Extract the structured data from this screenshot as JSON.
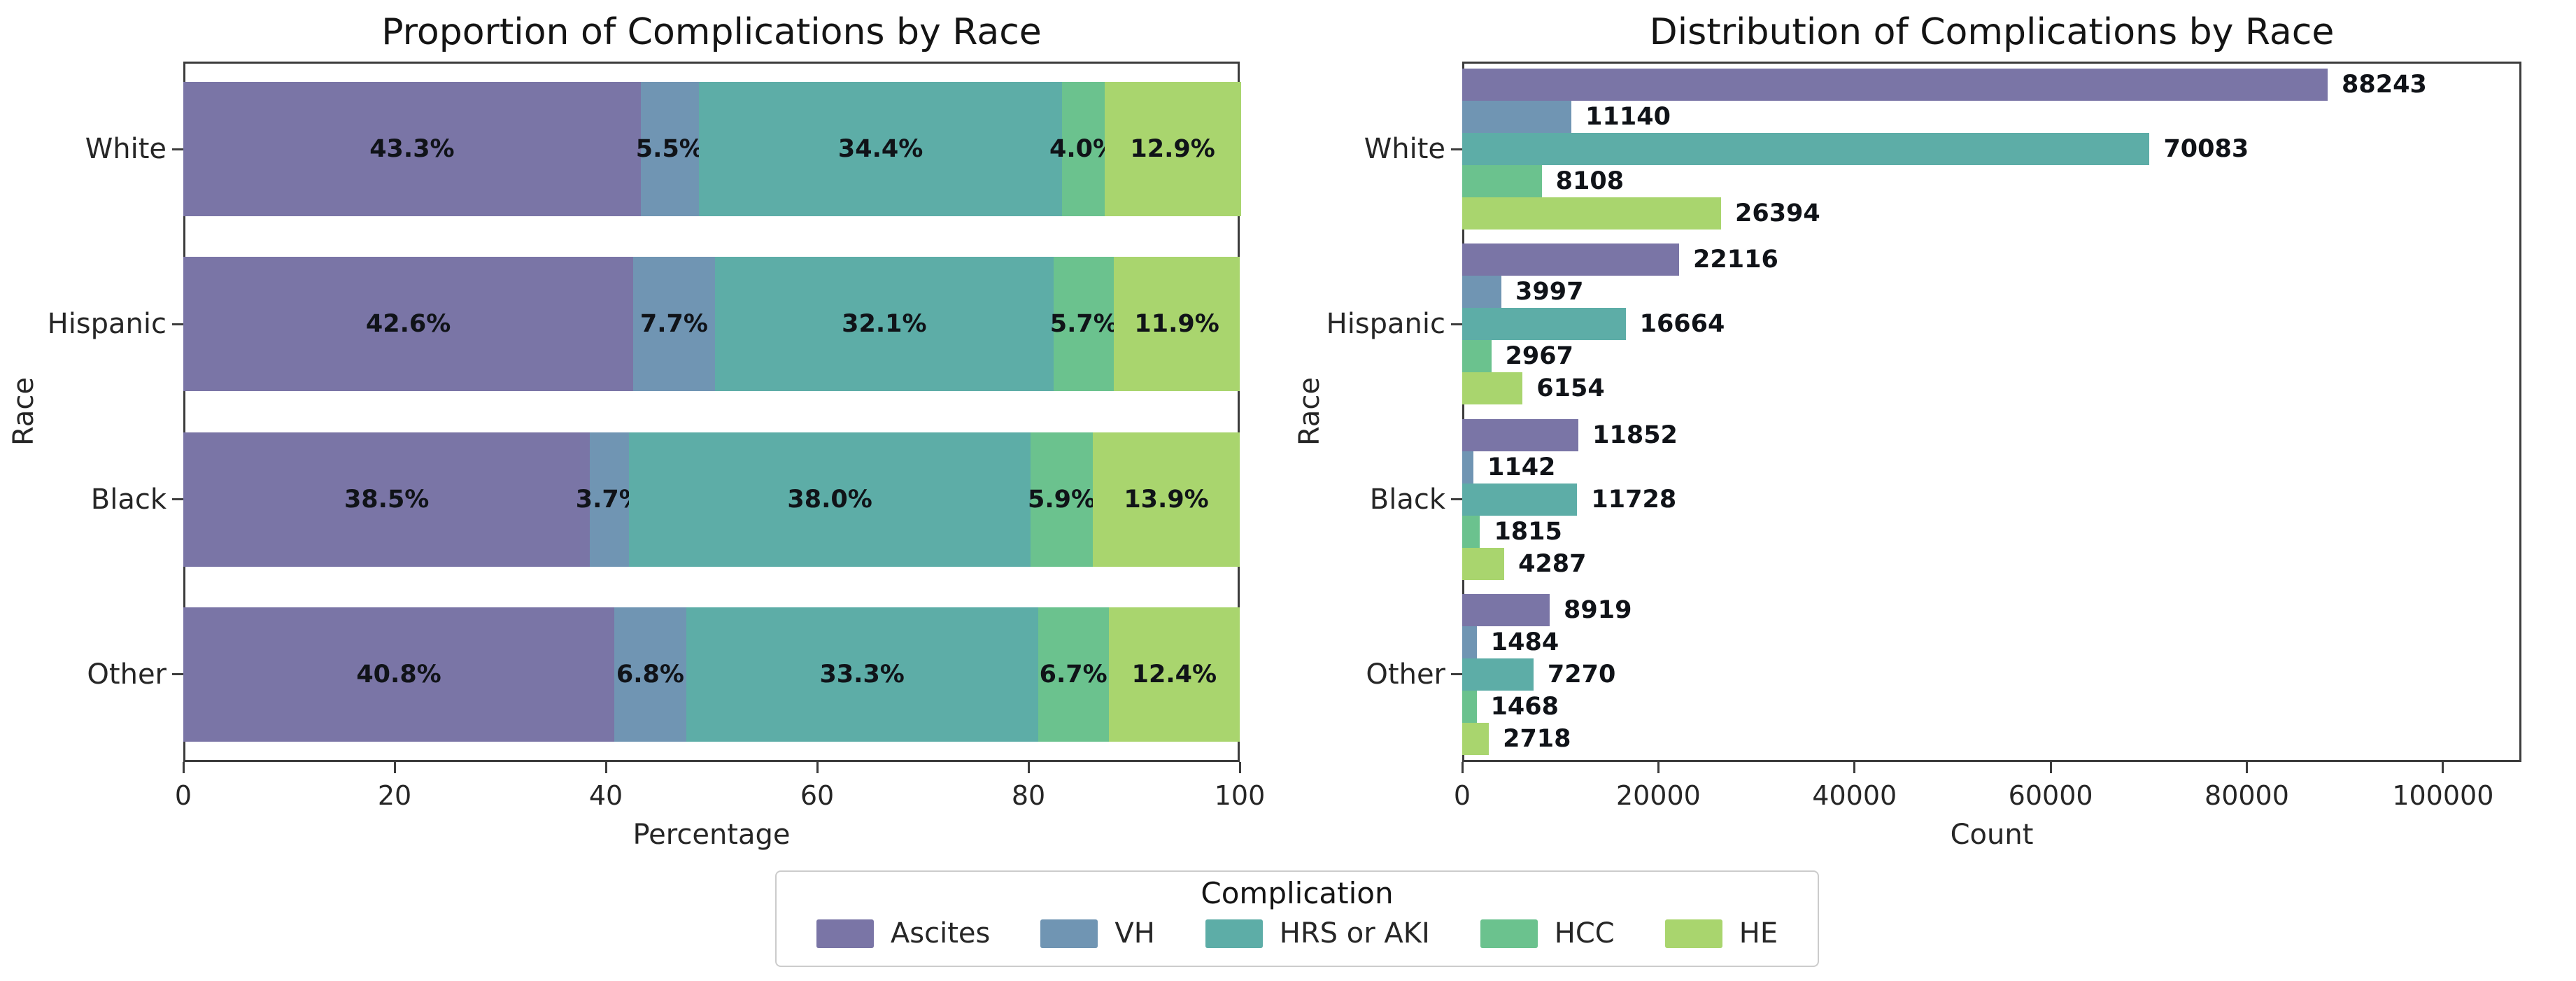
{
  "figure": {
    "background": "#ffffff",
    "text_color": "#262626",
    "spine_color": "#3c3c3c"
  },
  "legend": {
    "title": "Complication",
    "entries": [
      "Ascites",
      "VH",
      "HRS or AKI",
      "HCC",
      "HE"
    ]
  },
  "chart_data": [
    {
      "type": "bar",
      "orientation": "horizontal",
      "stacked": true,
      "title": "Proportion of Complications by Race",
      "xlabel": "Percentage",
      "ylabel": "Race",
      "categories": [
        "White",
        "Hispanic",
        "Black",
        "Other"
      ],
      "xlim": [
        0,
        100
      ],
      "xticks": [
        0,
        20,
        40,
        60,
        80,
        100
      ],
      "grid": false,
      "legend_position": "bottom-center",
      "series": [
        {
          "name": "Ascites",
          "color": "#7a75a6",
          "values": [
            43.3,
            42.6,
            38.5,
            40.8
          ],
          "value_labels": [
            "43.3%",
            "42.6%",
            "38.5%",
            "40.8%"
          ]
        },
        {
          "name": "VH",
          "color": "#7095b3",
          "values": [
            5.5,
            7.7,
            3.7,
            6.8
          ],
          "value_labels": [
            "5.5%",
            "7.7%",
            "3.7%",
            "6.8%"
          ]
        },
        {
          "name": "HRS or AKI",
          "color": "#5dada7",
          "values": [
            34.4,
            32.1,
            38.0,
            33.3
          ],
          "value_labels": [
            "34.4%",
            "32.1%",
            "38.0%",
            "33.3%"
          ]
        },
        {
          "name": "HCC",
          "color": "#6bc28e",
          "values": [
            4.0,
            5.7,
            5.9,
            6.7
          ],
          "value_labels": [
            "4.0%",
            "5.7%",
            "5.9%",
            "6.7%"
          ]
        },
        {
          "name": "HE",
          "color": "#a9d56e",
          "values": [
            12.9,
            11.9,
            13.9,
            12.4
          ],
          "value_labels": [
            "12.9%",
            "11.9%",
            "13.9%",
            "12.4%"
          ]
        }
      ]
    },
    {
      "type": "bar",
      "orientation": "horizontal",
      "stacked": false,
      "title": "Distribution of Complications by Race",
      "xlabel": "Count",
      "ylabel": "Race",
      "categories": [
        "White",
        "Hispanic",
        "Black",
        "Other"
      ],
      "xlim": [
        0,
        108000
      ],
      "xticks": [
        0,
        20000,
        40000,
        60000,
        80000,
        100000
      ],
      "grid": false,
      "legend_position": "shared-bottom",
      "series": [
        {
          "name": "Ascites",
          "color": "#7a75a6",
          "values": [
            88243,
            22116,
            11852,
            8919
          ],
          "value_labels": [
            "88243",
            "22116",
            "11852",
            "8919"
          ]
        },
        {
          "name": "VH",
          "color": "#7095b3",
          "values": [
            11140,
            3997,
            1142,
            1484
          ],
          "value_labels": [
            "11140",
            "3997",
            "1142",
            "1484"
          ]
        },
        {
          "name": "HRS or AKI",
          "color": "#5dada7",
          "values": [
            70083,
            16664,
            11728,
            7270
          ],
          "value_labels": [
            "70083",
            "16664",
            "11728",
            "7270"
          ]
        },
        {
          "name": "HCC",
          "color": "#6bc28e",
          "values": [
            8108,
            2967,
            1815,
            1468
          ],
          "value_labels": [
            "8108",
            "2967",
            "1815",
            "1468"
          ]
        },
        {
          "name": "HE",
          "color": "#a9d56e",
          "values": [
            26394,
            6154,
            4287,
            2718
          ],
          "value_labels": [
            "26394",
            "6154",
            "4287",
            "2718"
          ]
        }
      ]
    }
  ]
}
